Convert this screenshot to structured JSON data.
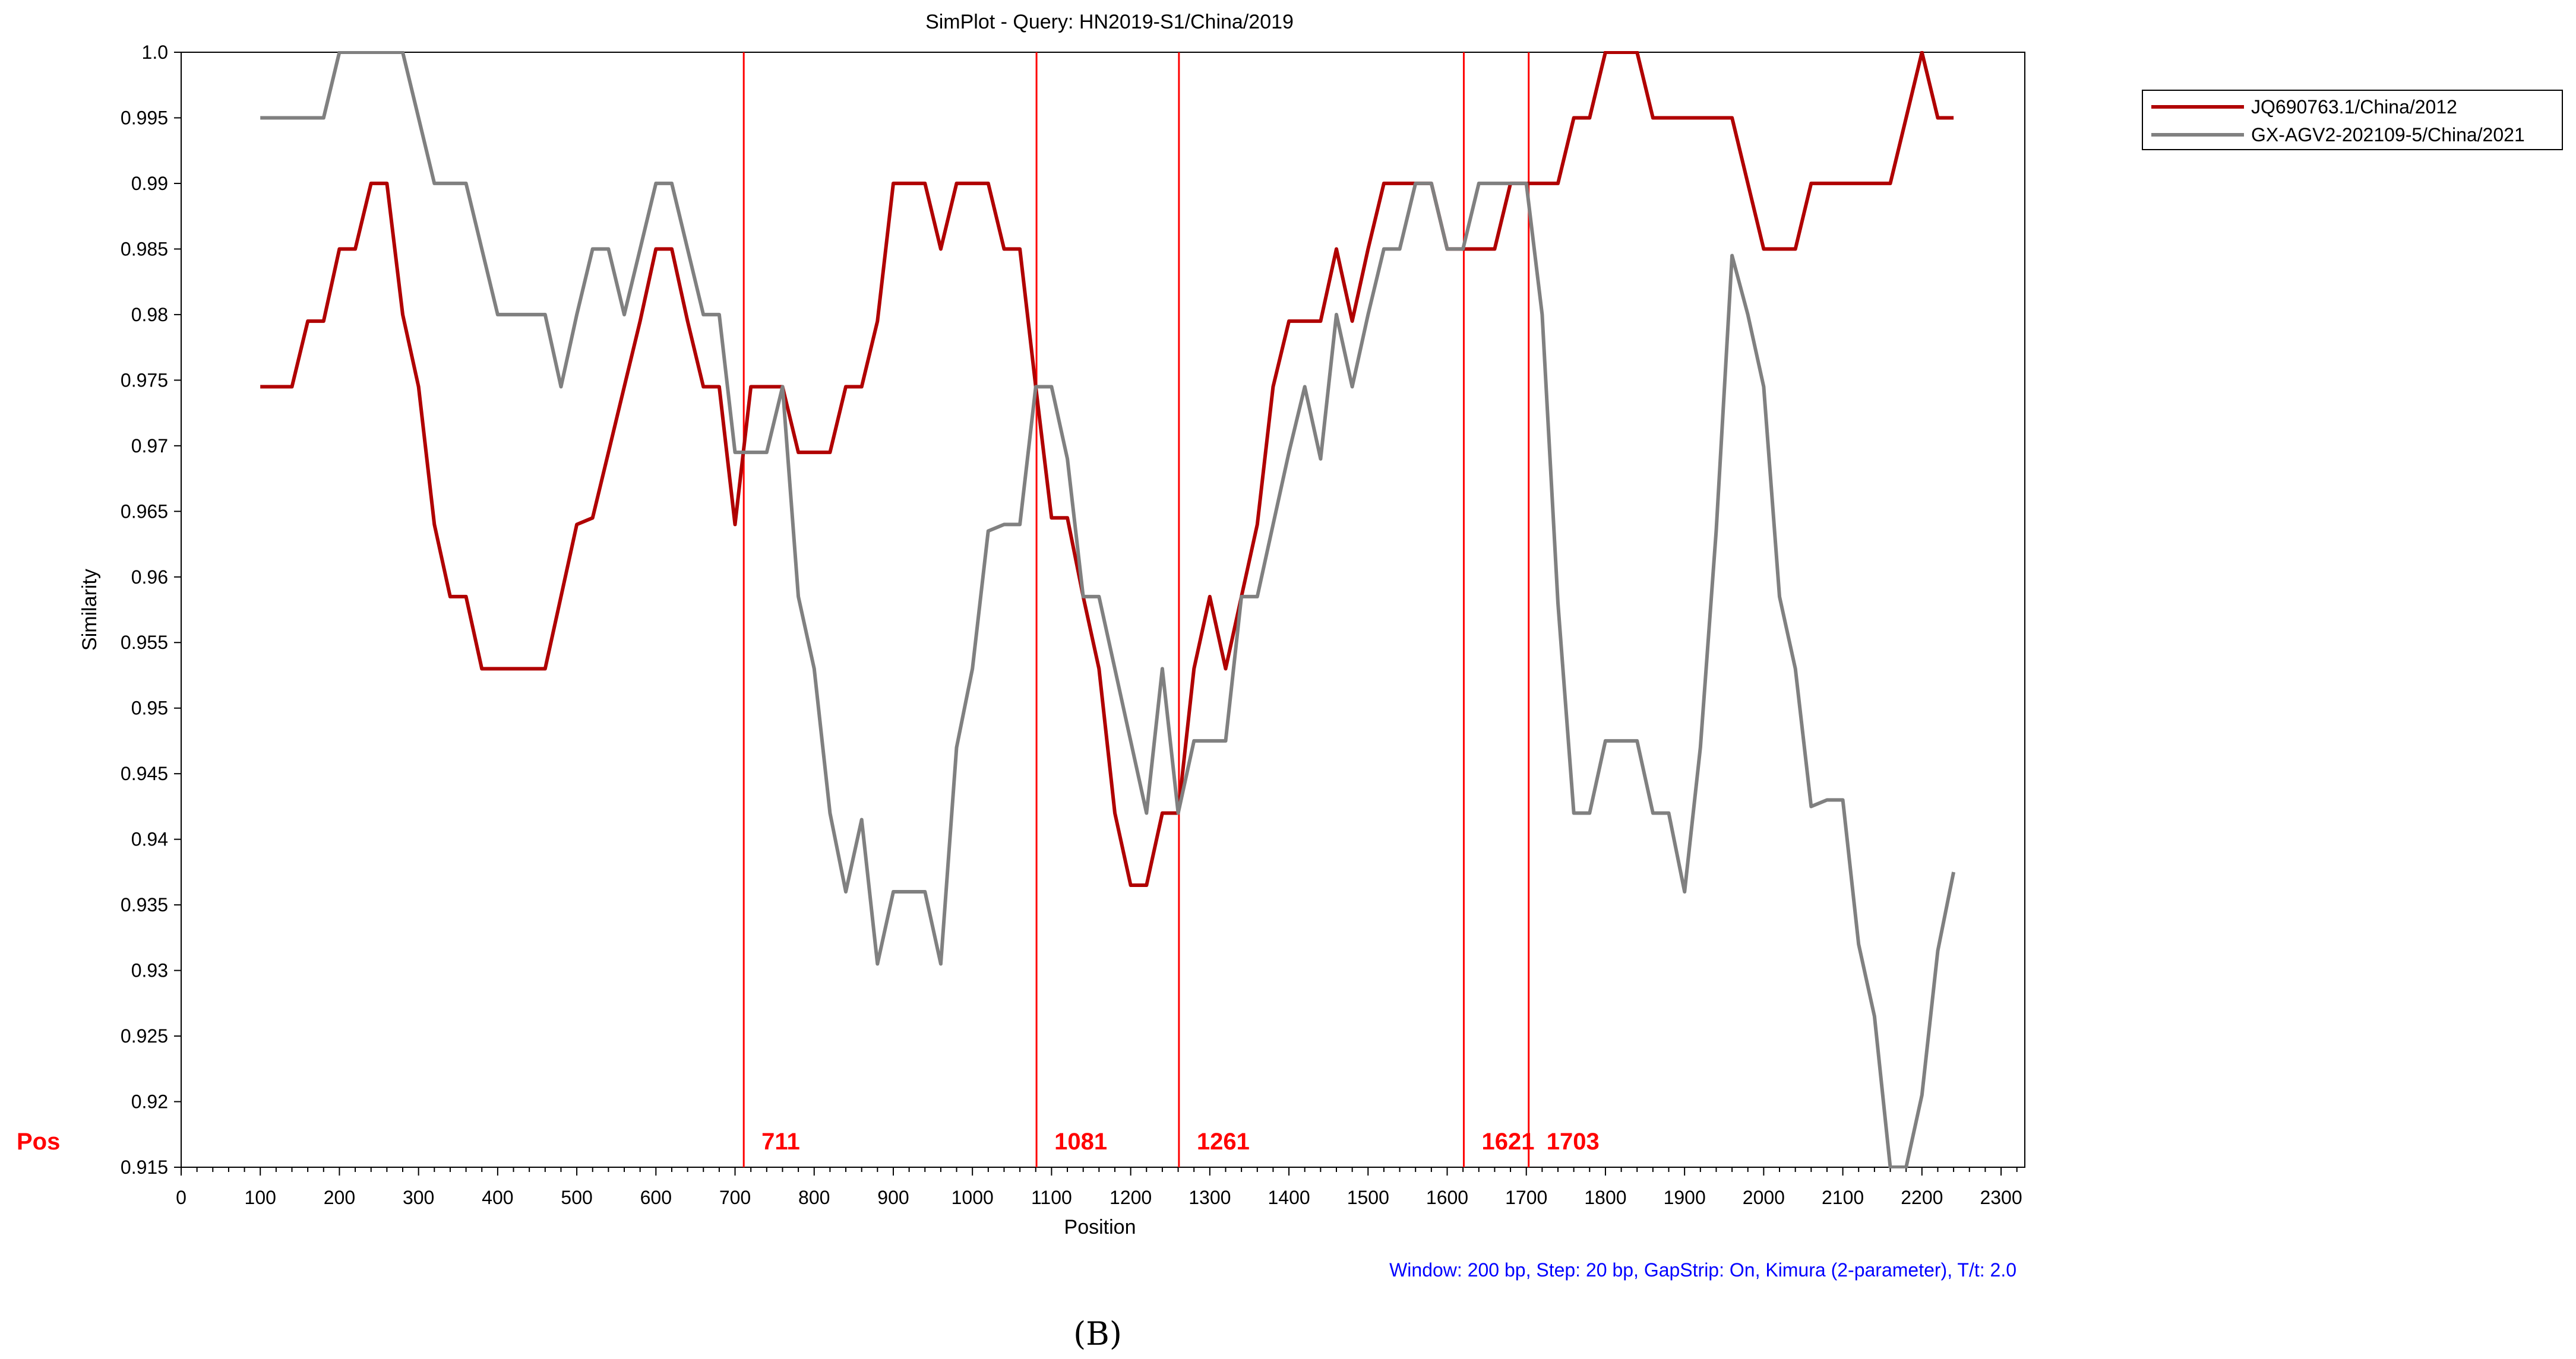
{
  "chart_data": {
    "type": "line",
    "title": "SimPlot - Query: HN2019-S1/China/2019",
    "xlabel": "Position",
    "ylabel": "Similarity",
    "xlim": [
      0,
      2330
    ],
    "ylim": [
      0.915,
      1.0
    ],
    "x_ticks": [
      0,
      100,
      200,
      300,
      400,
      500,
      600,
      700,
      800,
      900,
      1000,
      1100,
      1200,
      1300,
      1400,
      1500,
      1600,
      1700,
      1800,
      1900,
      2000,
      2100,
      2200,
      2300
    ],
    "y_ticks": [
      "1.0",
      "0.995",
      "0.99",
      "0.985",
      "0.98",
      "0.975",
      "0.97",
      "0.965",
      "0.96",
      "0.955",
      "0.95",
      "0.945",
      "0.94",
      "0.935",
      "0.93",
      "0.925",
      "0.92",
      "0.915"
    ],
    "grid": false,
    "legend_position": "top-right",
    "pos_label": "Pos",
    "breakpoints": [
      {
        "x": 711,
        "label": "711"
      },
      {
        "x": 1081,
        "label": "1081"
      },
      {
        "x": 1261,
        "label": "1261"
      },
      {
        "x": 1621,
        "label": "1621"
      },
      {
        "x": 1703,
        "label": "1703"
      }
    ],
    "series": [
      {
        "name": "JQ690763.1/China/2012",
        "color": "#b00000",
        "points": [
          [
            100,
            0.9745
          ],
          [
            140,
            0.9745
          ],
          [
            160,
            0.9795
          ],
          [
            180,
            0.9795
          ],
          [
            200,
            0.985
          ],
          [
            220,
            0.985
          ],
          [
            240,
            0.99
          ],
          [
            260,
            0.99
          ],
          [
            280,
            0.98
          ],
          [
            300,
            0.9745
          ],
          [
            320,
            0.964
          ],
          [
            340,
            0.9585
          ],
          [
            360,
            0.9585
          ],
          [
            380,
            0.953
          ],
          [
            400,
            0.953
          ],
          [
            420,
            0.953
          ],
          [
            440,
            0.953
          ],
          [
            460,
            0.953
          ],
          [
            480,
            0.9585
          ],
          [
            500,
            0.964
          ],
          [
            520,
            0.9645
          ],
          [
            540,
            0.9695
          ],
          [
            560,
            0.9745
          ],
          [
            580,
            0.9795
          ],
          [
            600,
            0.985
          ],
          [
            620,
            0.985
          ],
          [
            640,
            0.9795
          ],
          [
            660,
            0.9745
          ],
          [
            680,
            0.9745
          ],
          [
            700,
            0.964
          ],
          [
            720,
            0.9745
          ],
          [
            740,
            0.9745
          ],
          [
            760,
            0.9745
          ],
          [
            780,
            0.9695
          ],
          [
            800,
            0.9695
          ],
          [
            820,
            0.9695
          ],
          [
            840,
            0.9745
          ],
          [
            860,
            0.9745
          ],
          [
            880,
            0.9795
          ],
          [
            900,
            0.99
          ],
          [
            920,
            0.99
          ],
          [
            940,
            0.99
          ],
          [
            960,
            0.985
          ],
          [
            980,
            0.99
          ],
          [
            1000,
            0.99
          ],
          [
            1020,
            0.99
          ],
          [
            1040,
            0.985
          ],
          [
            1060,
            0.985
          ],
          [
            1080,
            0.9745
          ],
          [
            1100,
            0.9645
          ],
          [
            1120,
            0.9645
          ],
          [
            1140,
            0.9585
          ],
          [
            1160,
            0.953
          ],
          [
            1180,
            0.942
          ],
          [
            1200,
            0.9365
          ],
          [
            1220,
            0.9365
          ],
          [
            1240,
            0.942
          ],
          [
            1260,
            0.942
          ],
          [
            1280,
            0.953
          ],
          [
            1300,
            0.9585
          ],
          [
            1320,
            0.953
          ],
          [
            1340,
            0.9585
          ],
          [
            1360,
            0.964
          ],
          [
            1380,
            0.9745
          ],
          [
            1400,
            0.9795
          ],
          [
            1420,
            0.9795
          ],
          [
            1440,
            0.9795
          ],
          [
            1460,
            0.985
          ],
          [
            1480,
            0.9795
          ],
          [
            1500,
            0.985
          ],
          [
            1520,
            0.99
          ],
          [
            1540,
            0.99
          ],
          [
            1560,
            0.99
          ],
          [
            1580,
            0.99
          ],
          [
            1600,
            0.985
          ],
          [
            1620,
            0.985
          ],
          [
            1640,
            0.985
          ],
          [
            1660,
            0.985
          ],
          [
            1680,
            0.99
          ],
          [
            1700,
            0.99
          ],
          [
            1720,
            0.99
          ],
          [
            1740,
            0.99
          ],
          [
            1760,
            0.995
          ],
          [
            1780,
            0.995
          ],
          [
            1800,
            1.0
          ],
          [
            1820,
            1.0
          ],
          [
            1840,
            1.0
          ],
          [
            1860,
            0.995
          ],
          [
            1880,
            0.995
          ],
          [
            1900,
            0.995
          ],
          [
            1920,
            0.995
          ],
          [
            1940,
            0.995
          ],
          [
            1960,
            0.995
          ],
          [
            1980,
            0.99
          ],
          [
            2000,
            0.985
          ],
          [
            2020,
            0.985
          ],
          [
            2040,
            0.985
          ],
          [
            2060,
            0.99
          ],
          [
            2080,
            0.99
          ],
          [
            2100,
            0.99
          ],
          [
            2120,
            0.99
          ],
          [
            2140,
            0.99
          ],
          [
            2160,
            0.99
          ],
          [
            2180,
            0.995
          ],
          [
            2200,
            1.0
          ],
          [
            2220,
            0.995
          ],
          [
            2240,
            0.995
          ]
        ]
      },
      {
        "name": "GX-AGV2-202109-5/China/2021",
        "color": "#808080",
        "points": [
          [
            100,
            0.995
          ],
          [
            140,
            0.995
          ],
          [
            160,
            0.995
          ],
          [
            180,
            0.995
          ],
          [
            200,
            1.0
          ],
          [
            220,
            1.0
          ],
          [
            240,
            1.0
          ],
          [
            260,
            1.0
          ],
          [
            280,
            1.0
          ],
          [
            300,
            0.995
          ],
          [
            320,
            0.99
          ],
          [
            340,
            0.99
          ],
          [
            360,
            0.99
          ],
          [
            380,
            0.985
          ],
          [
            400,
            0.98
          ],
          [
            420,
            0.98
          ],
          [
            440,
            0.98
          ],
          [
            460,
            0.98
          ],
          [
            480,
            0.9745
          ],
          [
            500,
            0.98
          ],
          [
            520,
            0.985
          ],
          [
            540,
            0.985
          ],
          [
            560,
            0.98
          ],
          [
            580,
            0.985
          ],
          [
            600,
            0.99
          ],
          [
            620,
            0.99
          ],
          [
            640,
            0.985
          ],
          [
            660,
            0.98
          ],
          [
            680,
            0.98
          ],
          [
            700,
            0.9695
          ],
          [
            720,
            0.9695
          ],
          [
            740,
            0.9695
          ],
          [
            760,
            0.9745
          ],
          [
            780,
            0.9585
          ],
          [
            800,
            0.953
          ],
          [
            820,
            0.942
          ],
          [
            840,
            0.936
          ],
          [
            860,
            0.9415
          ],
          [
            880,
            0.9305
          ],
          [
            900,
            0.936
          ],
          [
            920,
            0.936
          ],
          [
            940,
            0.936
          ],
          [
            960,
            0.9305
          ],
          [
            980,
            0.947
          ],
          [
            1000,
            0.953
          ],
          [
            1020,
            0.9635
          ],
          [
            1040,
            0.964
          ],
          [
            1060,
            0.964
          ],
          [
            1080,
            0.9745
          ],
          [
            1100,
            0.9745
          ],
          [
            1120,
            0.969
          ],
          [
            1140,
            0.9585
          ],
          [
            1160,
            0.9585
          ],
          [
            1180,
            0.953
          ],
          [
            1200,
            0.9475
          ],
          [
            1220,
            0.942
          ],
          [
            1240,
            0.953
          ],
          [
            1260,
            0.942
          ],
          [
            1280,
            0.9475
          ],
          [
            1300,
            0.9475
          ],
          [
            1320,
            0.9475
          ],
          [
            1340,
            0.9585
          ],
          [
            1360,
            0.9585
          ],
          [
            1380,
            0.964
          ],
          [
            1400,
            0.9695
          ],
          [
            1420,
            0.9745
          ],
          [
            1440,
            0.969
          ],
          [
            1460,
            0.98
          ],
          [
            1480,
            0.9745
          ],
          [
            1500,
            0.98
          ],
          [
            1520,
            0.985
          ],
          [
            1540,
            0.985
          ],
          [
            1560,
            0.99
          ],
          [
            1580,
            0.99
          ],
          [
            1600,
            0.985
          ],
          [
            1620,
            0.985
          ],
          [
            1640,
            0.99
          ],
          [
            1660,
            0.99
          ],
          [
            1680,
            0.99
          ],
          [
            1700,
            0.99
          ],
          [
            1720,
            0.98
          ],
          [
            1740,
            0.958
          ],
          [
            1760,
            0.942
          ],
          [
            1780,
            0.942
          ],
          [
            1800,
            0.9475
          ],
          [
            1820,
            0.9475
          ],
          [
            1840,
            0.9475
          ],
          [
            1860,
            0.942
          ],
          [
            1880,
            0.942
          ],
          [
            1900,
            0.936
          ],
          [
            1920,
            0.947
          ],
          [
            1940,
            0.9635
          ],
          [
            1960,
            0.9845
          ],
          [
            1980,
            0.98
          ],
          [
            2000,
            0.9745
          ],
          [
            2020,
            0.9585
          ],
          [
            2040,
            0.953
          ],
          [
            2060,
            0.9425
          ],
          [
            2080,
            0.943
          ],
          [
            2100,
            0.943
          ],
          [
            2120,
            0.932
          ],
          [
            2140,
            0.9265
          ],
          [
            2160,
            0.915
          ],
          [
            2180,
            0.915
          ],
          [
            2200,
            0.9205
          ],
          [
            2220,
            0.9315
          ],
          [
            2240,
            0.9375
          ]
        ]
      }
    ],
    "info_text": "Window: 200 bp, Step: 20 bp, GapStrip: On, Kimura (2-parameter), T/t: 2.0"
  },
  "caption": "(B)"
}
